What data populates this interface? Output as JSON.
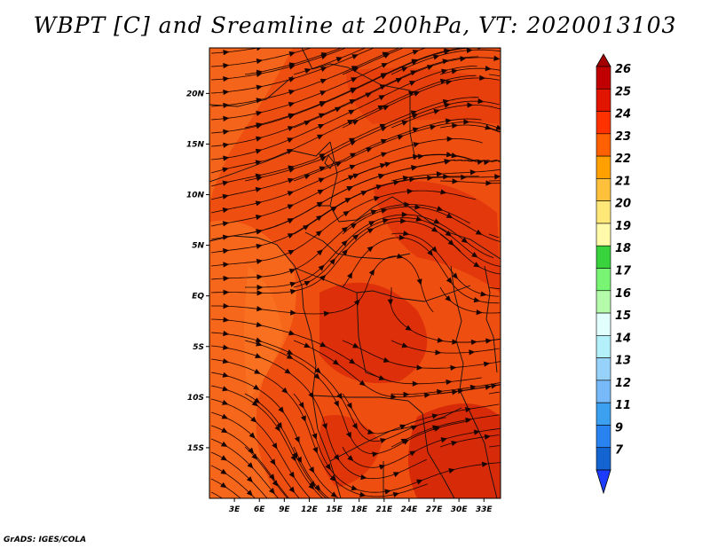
{
  "title": "WBPT [C] and Sreamline at 200hPa, VT: 2020013103",
  "footer": "GrADS: IGES/COLA",
  "map": {
    "x_ticks": [
      "3E",
      "6E",
      "9E",
      "12E",
      "15E",
      "18E",
      "21E",
      "24E",
      "27E",
      "30E",
      "33E"
    ],
    "x_tick_values": [
      3,
      6,
      9,
      12,
      15,
      18,
      21,
      24,
      27,
      30,
      33
    ],
    "y_ticks": [
      "20N",
      "15N",
      "10N",
      "5N",
      "EQ",
      "5S",
      "10S",
      "15S"
    ],
    "y_tick_values": [
      20,
      15,
      10,
      5,
      0,
      -5,
      -10,
      -15
    ],
    "lon_range": [
      0,
      35
    ],
    "lat_range": [
      -20,
      24.5
    ],
    "field": "WBPT",
    "units": "C",
    "level": "200hPa",
    "valid_time": "2020013103",
    "dominant_colors": [
      "#f05a14",
      "#e63c0a",
      "#d7290a"
    ]
  },
  "colorbar": {
    "levels": [
      "7",
      "9",
      "11",
      "12",
      "13",
      "14",
      "15",
      "16",
      "17",
      "18",
      "19",
      "20",
      "21",
      "22",
      "23",
      "24",
      "25",
      "26"
    ],
    "colors": [
      "#1464d2",
      "#2882f0",
      "#3ca0f0",
      "#78b9fa",
      "#96d2fa",
      "#b4f0fa",
      "#e1ffff",
      "#b4faaa",
      "#78f573",
      "#37d23c",
      "#fffaaa",
      "#ffe878",
      "#ffc03c",
      "#ffa000",
      "#ff6000",
      "#ff3200",
      "#e11400",
      "#c00000"
    ],
    "top_arrow_color": "#a50000",
    "bottom_arrow_color": "#1e3cff"
  }
}
